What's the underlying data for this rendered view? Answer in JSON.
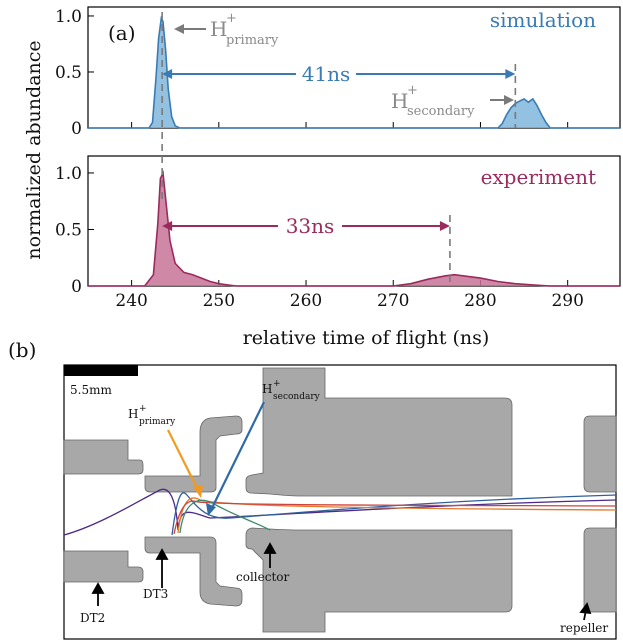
{
  "chart_data": {
    "type": "area",
    "panel_label": "(a)",
    "xlabel": "relative time of flight (ns)",
    "ylabel": "normalized abundance",
    "xlim": [
      235,
      296
    ],
    "x_ticks": [
      "240",
      "250",
      "260",
      "270",
      "280",
      "290"
    ],
    "y_ticks": [
      "0",
      "0.5",
      "1.0"
    ],
    "series": [
      {
        "name": "simulation",
        "color": "#3a7bb3",
        "fill": "#7fb6dd",
        "ylim": [
          0,
          1.08
        ],
        "x": [
          235,
          242.0,
          242.4,
          242.8,
          243.1,
          243.4,
          243.6,
          243.9,
          244.2,
          244.6,
          245.0,
          245.5,
          246,
          282.0,
          282.5,
          283.0,
          283.5,
          284.0,
          284.5,
          285.0,
          285.5,
          286.0,
          286.5,
          287.0,
          287.5,
          288,
          296
        ],
        "values": [
          0,
          0,
          0.05,
          0.45,
          0.8,
          0.98,
          0.95,
          0.7,
          0.35,
          0.1,
          0.02,
          0,
          0,
          0,
          0.04,
          0.12,
          0.18,
          0.22,
          0.24,
          0.26,
          0.23,
          0.26,
          0.2,
          0.12,
          0.05,
          0,
          0
        ]
      },
      {
        "name": "experiment",
        "color": "#9b2a5e",
        "fill": "#c77496",
        "ylim": [
          0,
          1.15
        ],
        "x": [
          235,
          241.5,
          242.5,
          243.0,
          243.3,
          243.6,
          244.0,
          244.4,
          245.0,
          246.0,
          247.0,
          248.0,
          249.0,
          250.0,
          251.0,
          252,
          270,
          272,
          274,
          276,
          277,
          278,
          280,
          282,
          284,
          286,
          288,
          296
        ],
        "values": [
          0,
          0,
          0.1,
          0.55,
          0.95,
          1.0,
          0.7,
          0.4,
          0.2,
          0.12,
          0.1,
          0.07,
          0.04,
          0.02,
          0.01,
          0,
          0,
          0.02,
          0.06,
          0.09,
          0.1,
          0.09,
          0.07,
          0.04,
          0.02,
          0.01,
          0,
          0
        ]
      }
    ],
    "annotations": {
      "sim_primary_label": "H",
      "sim_primary_sub": "primary",
      "sim_secondary_label": "H",
      "sim_secondary_sub": "secondary",
      "plus": "+",
      "sim_interval": "41ns",
      "exp_interval": "33ns",
      "sim_interval_x": [
        243.5,
        284.0
      ],
      "exp_interval_x": [
        243.5,
        276.5
      ]
    }
  },
  "diagram": {
    "panel_label": "(b)",
    "scale_bar": "5.5mm",
    "labels": {
      "h_plus": "H",
      "plus": "+",
      "primary": "primary",
      "secondary": "secondary",
      "collector": "collector",
      "dt2": "DT2",
      "dt3": "DT3",
      "repeller": "repeller"
    },
    "trajectory_colors": [
      "#4b2a8a",
      "#2f5f9a",
      "#e07b2f",
      "#d0423b",
      "#3e8a6a"
    ],
    "electrode_color": "#a8a8a8"
  }
}
